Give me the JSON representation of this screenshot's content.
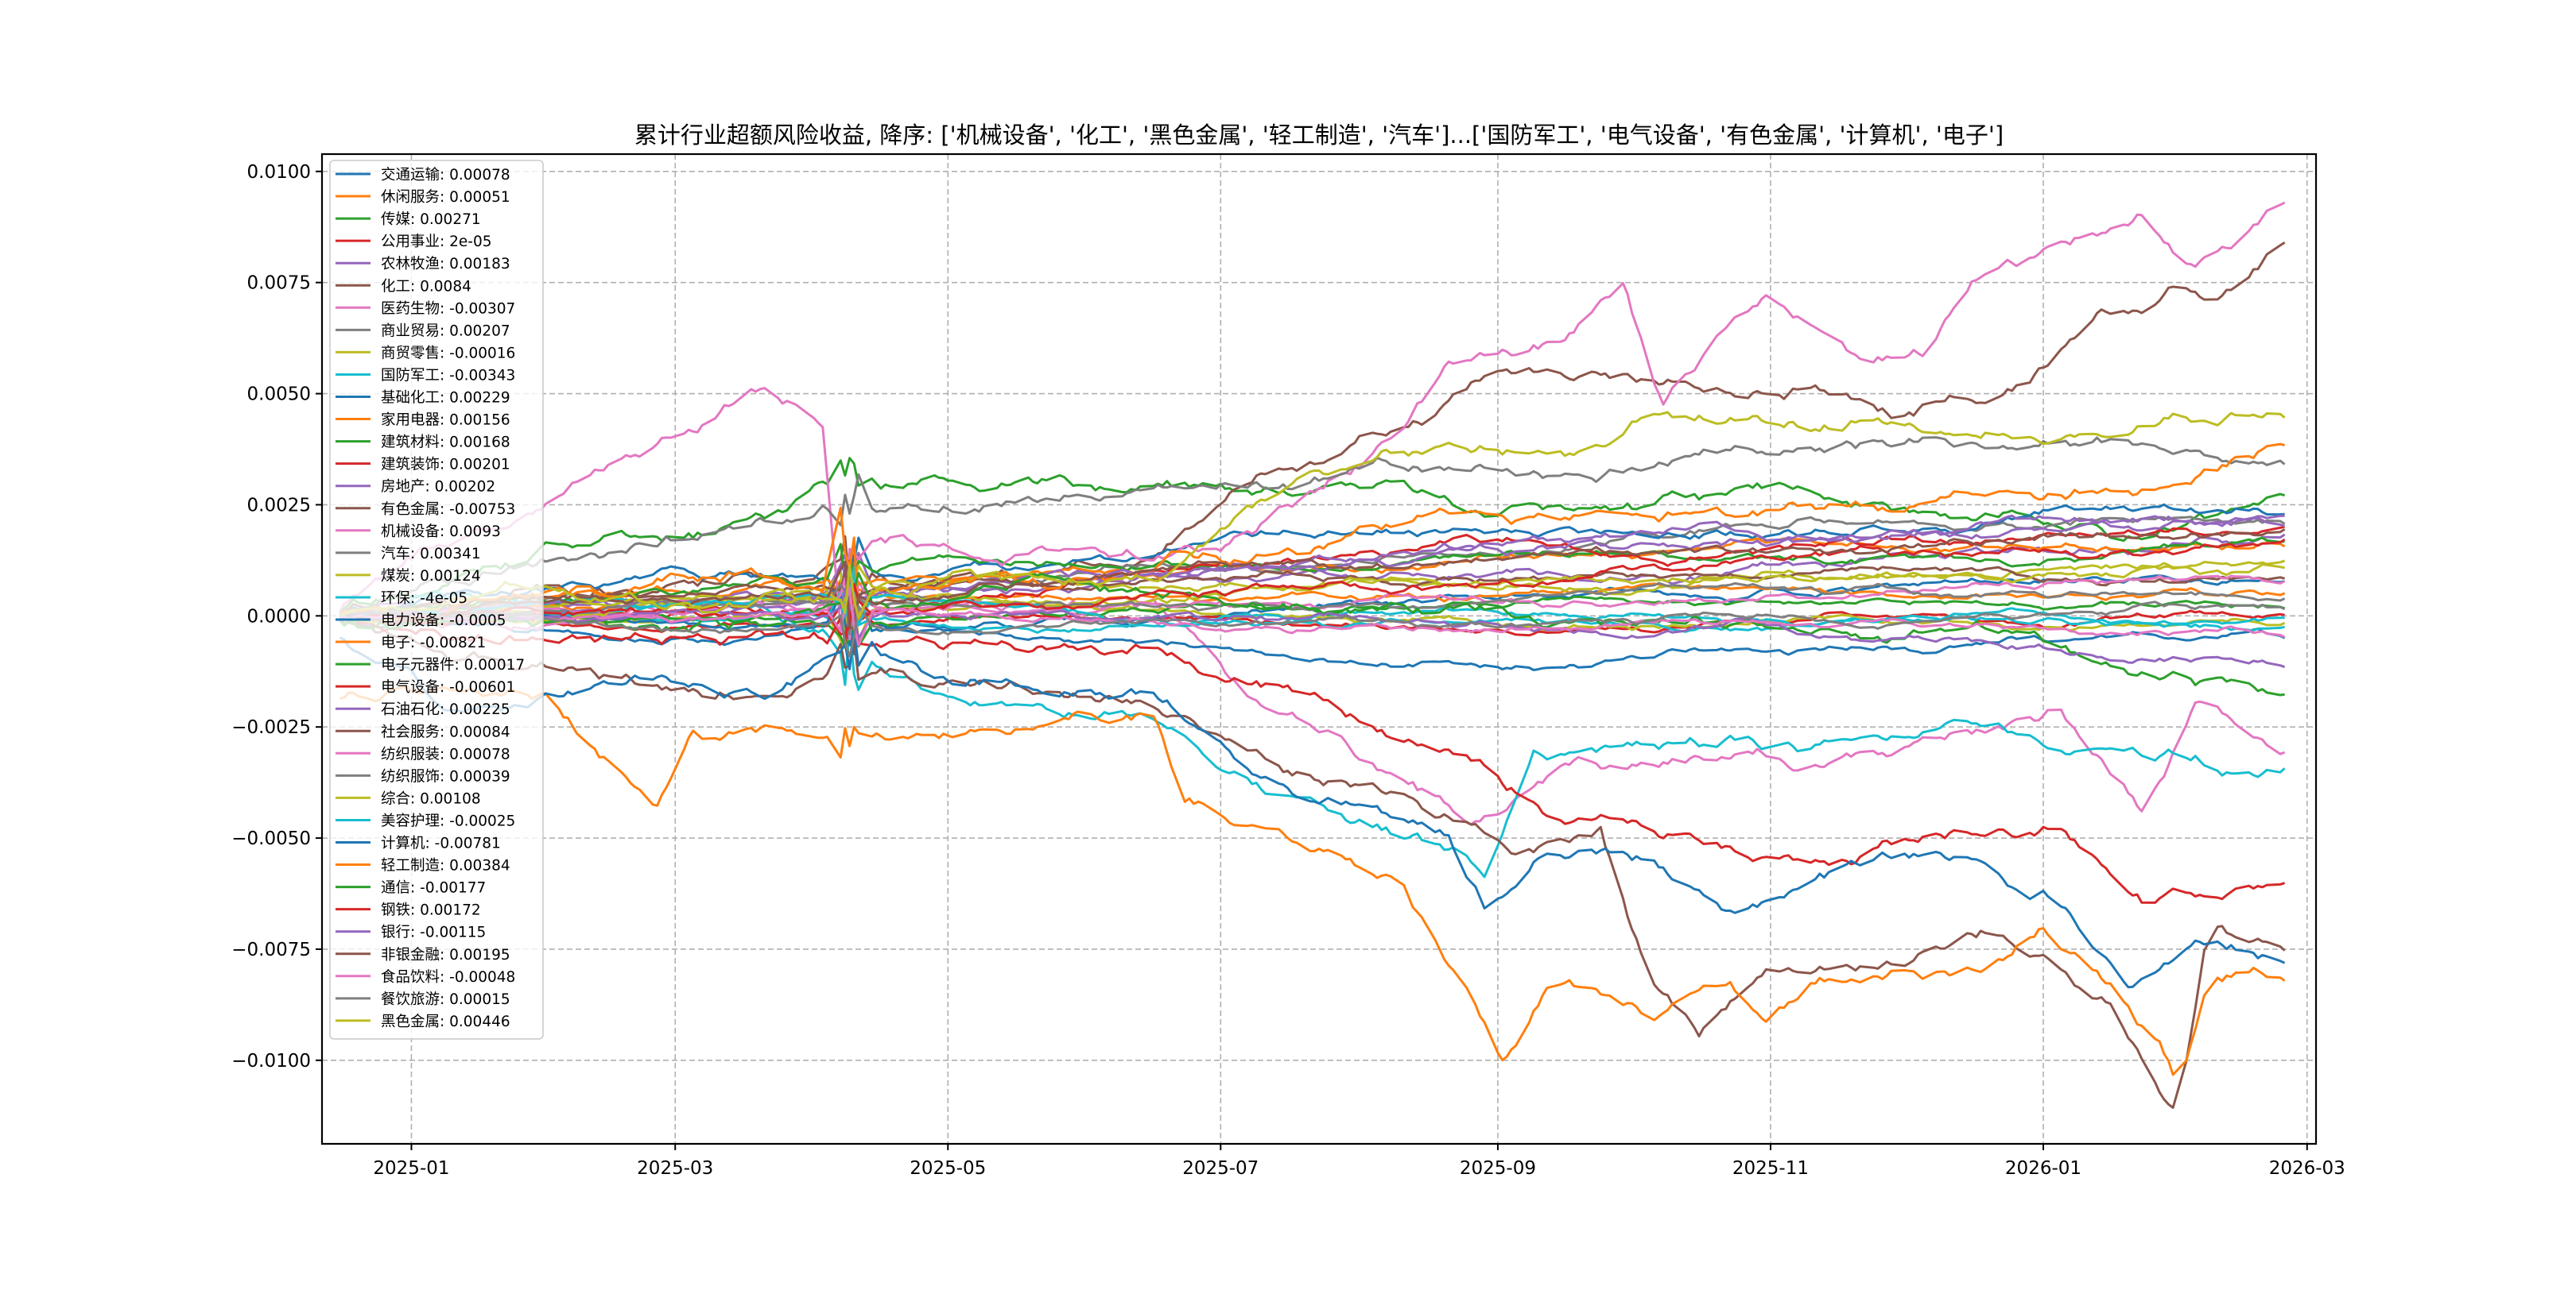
{
  "chart_data": {
    "type": "line",
    "title": "累计行业超额风险收益, 降序: ['机械设备', '化工', '黑色金属', '轻工制造', '汽车']...['国防军工', '电气设备', '有色金属', '计算机', '电子']",
    "xlabel": "",
    "ylabel": "",
    "x_unit": "days since 2025-01-01",
    "xlim": [
      -20,
      426
    ],
    "ylim": [
      -0.01188,
      0.01039
    ],
    "x_range_of_data": [
      -17,
      419
    ],
    "grid": true,
    "legend_placement": "upper-left",
    "yticks": [
      {
        "value": 0.01,
        "label": "0.0100"
      },
      {
        "value": 0.0075,
        "label": "0.0075"
      },
      {
        "value": 0.005,
        "label": "0.0050"
      },
      {
        "value": 0.0025,
        "label": "0.0025"
      },
      {
        "value": 0,
        "label": "0.0000"
      },
      {
        "value": -0.0025,
        "label": "−0.0025"
      },
      {
        "value": -0.005,
        "label": "−0.0050"
      },
      {
        "value": -0.0075,
        "label": "−0.0075"
      },
      {
        "value": -0.01,
        "label": "−0.0100"
      }
    ],
    "xticks": [
      {
        "value": 0,
        "label": "2025-01"
      },
      {
        "value": 59,
        "label": "2025-03"
      },
      {
        "value": 120,
        "label": "2025-05"
      },
      {
        "value": 181,
        "label": "2025-07"
      },
      {
        "value": 243,
        "label": "2025-09"
      },
      {
        "value": 304,
        "label": "2025-11"
      },
      {
        "value": 365,
        "label": "2026-01"
      },
      {
        "value": 424,
        "label": "2026-03"
      }
    ],
    "colors": [
      "#1f77b4",
      "#ff7f0e",
      "#2ca02c",
      "#d62728",
      "#9467bd",
      "#8c564b",
      "#e377c2",
      "#7f7f7f",
      "#bcbd22",
      "#17becf"
    ],
    "series": [
      {
        "name": "交通运输",
        "final": "0.00078",
        "value": 0.00078
      },
      {
        "name": "休闲服务",
        "final": "0.00051",
        "value": 0.00051
      },
      {
        "name": "传媒",
        "final": "0.00271",
        "value": 0.00271,
        "waypoints": [
          [
            7,
            0.0005
          ],
          [
            18,
            0.001
          ],
          [
            55,
            0.0018
          ],
          [
            74,
            0.002
          ],
          [
            100,
            0.003
          ],
          [
            166,
            0.0032
          ],
          [
            221,
            0.0031
          ],
          [
            258,
            0.0025
          ],
          [
            314,
            0.0023
          ],
          [
            387,
            0.0023
          ]
        ]
      },
      {
        "name": "公用事业",
        "final": "2e-05",
        "value": 2e-05
      },
      {
        "name": "农林牧渔",
        "final": "0.00183",
        "value": 0.00183
      },
      {
        "name": "化工",
        "final": "0.0084",
        "value": 0.0084,
        "waypoints": [
          [
            166,
            0.0003
          ],
          [
            185,
            0.002
          ],
          [
            210,
            0.003
          ],
          [
            240,
            0.0042
          ],
          [
            277,
            0.0043
          ],
          [
            314,
            0.005
          ],
          [
            332,
            0.0045
          ],
          [
            362,
            0.005
          ],
          [
            376,
            0.0065
          ],
          [
            395,
            0.0075
          ],
          [
            402,
            0.007
          ]
        ]
      },
      {
        "name": "医药生物",
        "final": "-0.00307",
        "value": -0.00307,
        "waypoints": [
          [
            166,
            0
          ],
          [
            188,
            -0.002
          ],
          [
            221,
            -0.004
          ],
          [
            236,
            -0.005
          ],
          [
            258,
            -0.004
          ],
          [
            314,
            -0.004
          ],
          [
            351,
            -0.003
          ],
          [
            369,
            -0.0025
          ],
          [
            387,
            -0.0045
          ],
          [
            399,
            -0.002
          ]
        ]
      },
      {
        "name": "商业贸易",
        "final": "0.00207",
        "value": 0.00207
      },
      {
        "name": "商贸零售",
        "final": "-0.00016",
        "value": -0.00016
      },
      {
        "name": "国防军工",
        "final": "-0.00343",
        "value": -0.00343,
        "waypoints": [
          [
            74,
            0
          ],
          [
            100,
            -0.001
          ],
          [
            129,
            -0.0015
          ],
          [
            166,
            -0.002
          ],
          [
            188,
            -0.0035
          ],
          [
            203,
            -0.004
          ],
          [
            221,
            -0.0048
          ],
          [
            240,
            -0.0055
          ],
          [
            251,
            -0.003
          ],
          [
            277,
            -0.0028
          ],
          [
            314,
            -0.003
          ],
          [
            351,
            -0.0025
          ],
          [
            387,
            -0.003
          ]
        ]
      },
      {
        "name": "基础化工",
        "final": "0.00229",
        "value": 0.00229
      },
      {
        "name": "家用电器",
        "final": "0.00156",
        "value": 0.00156
      },
      {
        "name": "建筑材料",
        "final": "0.00168",
        "value": 0.00168
      },
      {
        "name": "建筑装饰",
        "final": "0.00201",
        "value": 0.00201
      },
      {
        "name": "房地产",
        "final": "0.00202",
        "value": 0.00202
      },
      {
        "name": "有色金属",
        "final": "-0.00753",
        "value": -0.00753,
        "waypoints": [
          [
            37,
            -0.001
          ],
          [
            66,
            -0.0015
          ],
          [
            100,
            -0.0005
          ],
          [
            173,
            -0.002
          ],
          [
            199,
            -0.003
          ],
          [
            225,
            -0.0035
          ],
          [
            247,
            -0.0045
          ],
          [
            266,
            -0.004
          ],
          [
            277,
            -0.0075
          ],
          [
            288,
            -0.0085
          ],
          [
            303,
            -0.007
          ],
          [
            332,
            -0.0072
          ],
          [
            351,
            -0.0065
          ],
          [
            380,
            -0.008
          ],
          [
            395,
            -0.0105
          ],
          [
            402,
            -0.0065
          ]
        ]
      },
      {
        "name": "机械设备",
        "final": "0.0093",
        "value": 0.0093,
        "waypoints": [
          [
            0,
            0.0015
          ],
          [
            52,
            0.003
          ],
          [
            77,
            0.0043
          ],
          [
            92,
            0.0035
          ],
          [
            96,
            -0.001
          ],
          [
            100,
            0.001
          ],
          [
            129,
            0.001
          ],
          [
            166,
            0.0013
          ],
          [
            188,
            0.002
          ],
          [
            210,
            0.0035
          ],
          [
            221,
            0.0045
          ],
          [
            232,
            0.0058
          ],
          [
            258,
            0.0065
          ],
          [
            271,
            0.0077
          ],
          [
            280,
            0.0048
          ],
          [
            295,
            0.0065
          ],
          [
            303,
            0.007
          ],
          [
            325,
            0.0055
          ],
          [
            339,
            0.006
          ],
          [
            351,
            0.0075
          ],
          [
            369,
            0.008
          ],
          [
            387,
            0.009
          ],
          [
            399,
            0.0077
          ]
        ]
      },
      {
        "name": "汽车",
        "final": "0.00341",
        "value": 0.00341,
        "waypoints": [
          [
            74,
            0.001
          ],
          [
            129,
            0.002
          ],
          [
            166,
            0.0023
          ],
          [
            203,
            0.0025
          ],
          [
            277,
            0.003
          ],
          [
            314,
            0.0032
          ],
          [
            369,
            0.0036
          ]
        ]
      },
      {
        "name": "煤炭",
        "final": "0.00124",
        "value": 0.00124
      },
      {
        "name": "环保",
        "final": "-4e-05",
        "value": -4e-05
      },
      {
        "name": "电力设备",
        "final": "-0.0005",
        "value": -0.0005
      },
      {
        "name": "电子",
        "final": "-0.00821",
        "value": -0.00821,
        "waypoints": [
          [
            -17,
            -0.0018
          ],
          [
            30,
            -0.0018
          ],
          [
            55,
            -0.004
          ],
          [
            63,
            -0.0025
          ],
          [
            100,
            -0.0025
          ],
          [
            129,
            -0.0015
          ],
          [
            166,
            -0.0013
          ],
          [
            173,
            -0.003
          ],
          [
            203,
            -0.004
          ],
          [
            221,
            -0.005
          ],
          [
            236,
            -0.0075
          ],
          [
            244,
            -0.0095
          ],
          [
            255,
            -0.0075
          ],
          [
            277,
            -0.0085
          ],
          [
            295,
            -0.008
          ],
          [
            303,
            -0.009
          ],
          [
            314,
            -0.008
          ],
          [
            351,
            -0.0075
          ],
          [
            365,
            -0.0065
          ],
          [
            380,
            -0.008
          ],
          [
            391,
            -0.0095
          ],
          [
            395,
            -0.0105
          ],
          [
            402,
            -0.0085
          ]
        ]
      },
      {
        "name": "电子元器件",
        "final": "0.00017",
        "value": 0.00017
      },
      {
        "name": "电气设备",
        "final": "-0.00601",
        "value": -0.00601,
        "waypoints": [
          [
            166,
            0
          ],
          [
            192,
            -0.001
          ],
          [
            221,
            -0.0025
          ],
          [
            240,
            -0.0028
          ],
          [
            258,
            -0.004
          ],
          [
            295,
            -0.0045
          ],
          [
            314,
            -0.005
          ],
          [
            332,
            -0.0045
          ],
          [
            369,
            -0.004
          ],
          [
            387,
            -0.0055
          ]
        ]
      },
      {
        "name": "石油石化",
        "final": "0.00225",
        "value": 0.00225
      },
      {
        "name": "社会服务",
        "final": "0.00084",
        "value": 0.00084
      },
      {
        "name": "纺织服装",
        "final": "0.00078",
        "value": 0.00078
      },
      {
        "name": "纺织服饰",
        "final": "0.00039",
        "value": 0.00039
      },
      {
        "name": "综合",
        "final": "0.00108",
        "value": 0.00108
      },
      {
        "name": "美容护理",
        "final": "-0.00025",
        "value": -0.00025
      },
      {
        "name": "计算机",
        "final": "-0.00781",
        "value": -0.00781,
        "waypoints": [
          [
            -17,
            -0.0005
          ],
          [
            0,
            -0.0015
          ],
          [
            7,
            -0.0025
          ],
          [
            55,
            -0.002
          ],
          [
            74,
            -0.0025
          ],
          [
            100,
            -0.0015
          ],
          [
            122,
            -0.0025
          ],
          [
            166,
            -0.002
          ],
          [
            188,
            -0.0035
          ],
          [
            210,
            -0.0045
          ],
          [
            232,
            -0.0055
          ],
          [
            240,
            -0.007
          ],
          [
            251,
            -0.006
          ],
          [
            277,
            -0.0065
          ],
          [
            295,
            -0.0075
          ],
          [
            314,
            -0.0065
          ],
          [
            351,
            -0.006
          ],
          [
            369,
            -0.0068
          ],
          [
            384,
            -0.0085
          ],
          [
            399,
            -0.0075
          ]
        ]
      },
      {
        "name": "轻工制造",
        "final": "0.00384",
        "value": 0.00384,
        "waypoints": [
          [
            18,
            0.0005
          ],
          [
            92,
            0.0008
          ],
          [
            96,
            0.003
          ],
          [
            100,
            0.0008
          ],
          [
            129,
            0.0008
          ],
          [
            203,
            0.0015
          ],
          [
            240,
            0.002
          ],
          [
            295,
            0.0022
          ],
          [
            351,
            0.0025
          ],
          [
            387,
            0.003
          ]
        ]
      },
      {
        "name": "通信",
        "final": "-0.00177",
        "value": -0.00177,
        "waypoints": [
          [
            351,
            0
          ],
          [
            369,
            -0.0005
          ],
          [
            399,
            -0.0015
          ]
        ]
      },
      {
        "name": "钢铁",
        "final": "0.00172",
        "value": 0.00172
      },
      {
        "name": "银行",
        "final": "-0.00115",
        "value": -0.00115
      },
      {
        "name": "非银金融",
        "final": "0.00195",
        "value": 0.00195
      },
      {
        "name": "食品饮料",
        "final": "-0.00048",
        "value": -0.00048
      },
      {
        "name": "餐饮旅游",
        "final": "0.00015",
        "value": 0.00015
      },
      {
        "name": "黑色金属",
        "final": "0.00446",
        "value": 0.00446,
        "waypoints": [
          [
            166,
            0.0003
          ],
          [
            203,
            0.0025
          ],
          [
            232,
            0.003
          ],
          [
            258,
            0.0028
          ],
          [
            277,
            0.0037
          ],
          [
            314,
            0.0035
          ],
          [
            332,
            0.0038
          ],
          [
            369,
            0.004
          ],
          [
            395,
            0.0045
          ]
        ]
      }
    ]
  }
}
